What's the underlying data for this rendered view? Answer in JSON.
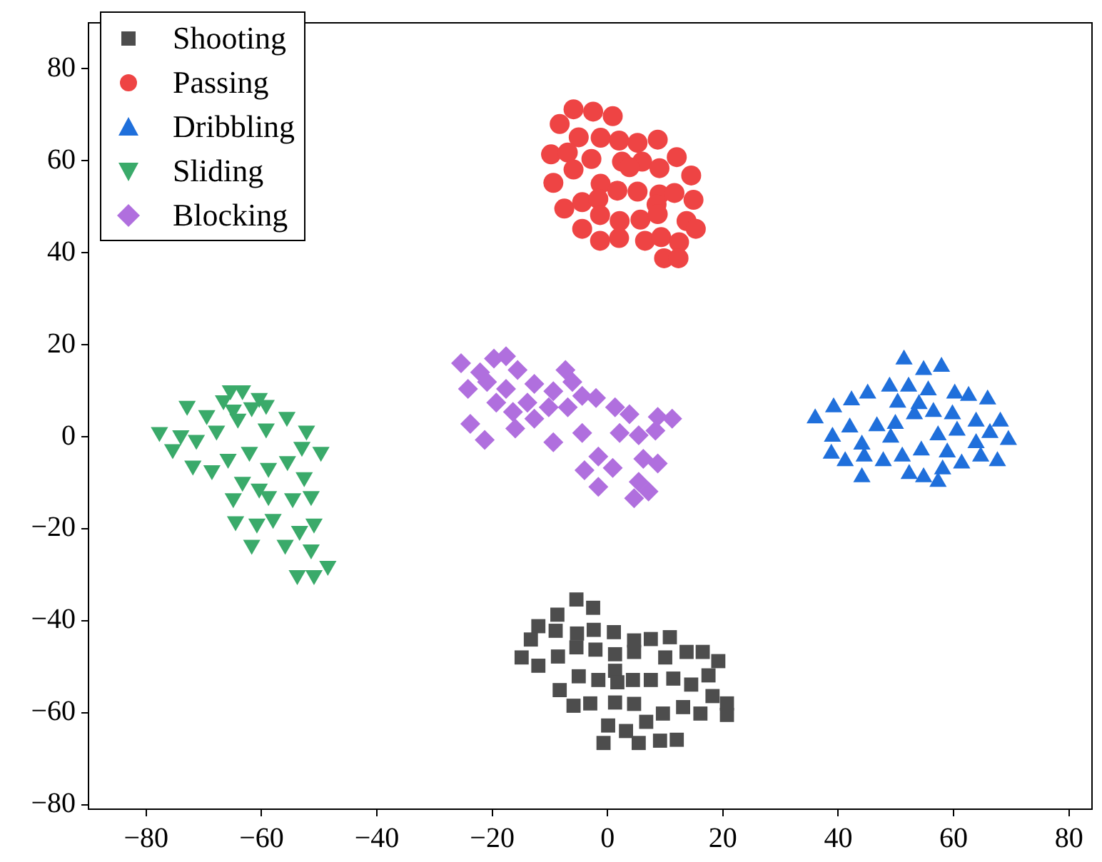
{
  "chart_data": {
    "type": "scatter",
    "xlim": [
      -90,
      84
    ],
    "ylim": [
      -81,
      90
    ],
    "xticks": [
      -80,
      -60,
      -40,
      -20,
      0,
      20,
      40,
      60,
      80
    ],
    "yticks": [
      -80,
      -60,
      -40,
      -20,
      0,
      20,
      40,
      60,
      80
    ],
    "grid": false,
    "legend": "top left",
    "series": [
      {
        "name": "Shooting",
        "color": "#4d4d4d",
        "marker": "square",
        "x": [
          -5.4,
          -2.5,
          -8.7,
          -12,
          -9,
          -5.3,
          -2.4,
          1.1,
          -13.3,
          -5.4,
          -2.1,
          1.3,
          4.6,
          7.5,
          10.8,
          -14.9,
          -12,
          -8.6,
          4.6,
          10,
          13.7,
          16.5,
          19.2,
          -5,
          -1.6,
          1.3,
          1.7,
          4.4,
          7.5,
          11.4,
          14.5,
          17.5,
          -8.3,
          -5.9,
          -3,
          1.3,
          4.6,
          9.6,
          13.1,
          16.1,
          18.2,
          20.7,
          20.7,
          0.1,
          3.2,
          6.7,
          -0.7,
          5.4,
          9.1,
          12
        ],
        "values": [
          -35.4,
          -37.2,
          -38.7,
          -41.2,
          -42.2,
          -42.8,
          -42,
          -42.5,
          -44.1,
          -45.8,
          -46.3,
          -47.3,
          -44.3,
          -44,
          -43.6,
          -48,
          -49.8,
          -47.8,
          -46.8,
          -48,
          -46.8,
          -46.8,
          -48.8,
          -52.1,
          -52.9,
          -50.9,
          -53.4,
          -52.9,
          -52.9,
          -52.6,
          -53.9,
          -51.9,
          -55.1,
          -58.5,
          -58,
          -57.8,
          -58.1,
          -60.2,
          -58.8,
          -60.2,
          -56.4,
          -58,
          -60.5,
          -62.8,
          -64,
          -62,
          -66.6,
          -66.6,
          -66.1,
          -65.9
        ]
      },
      {
        "name": "Passing",
        "color": "#ee4444",
        "marker": "circle",
        "x": [
          -5.9,
          -2.5,
          0.9,
          -8.3,
          -5,
          -1.2,
          2,
          5.2,
          8.7,
          -9.8,
          -6.9,
          -2.8,
          2.5,
          6,
          9,
          12,
          -5.9,
          3.8,
          14.5,
          -9.4,
          -1.2,
          1.7,
          5.2,
          9,
          11.6,
          14.9,
          -7.5,
          -4.4,
          -1.6,
          8.5,
          -1.3,
          2.1,
          5.7,
          8.7,
          13.7,
          15.3,
          -4.4,
          -1.3,
          2,
          6.5,
          9.3,
          12.4,
          9.8,
          12.3
        ],
        "values": [
          71.2,
          70.7,
          69.7,
          68,
          65.1,
          65,
          64.4,
          63.9,
          64.6,
          61.4,
          61.8,
          60.4,
          59.8,
          59.8,
          58.4,
          60.8,
          58.1,
          58.6,
          56.8,
          55.2,
          55,
          53.5,
          53.3,
          52.7,
          53,
          51.5,
          49.6,
          51,
          51.7,
          50.5,
          48.2,
          46.9,
          47.2,
          48.4,
          46.9,
          45.2,
          45.2,
          42.6,
          43.2,
          42.6,
          43.4,
          42.3,
          38.8,
          38.8
        ]
      },
      {
        "name": "Dribbling",
        "color": "#1f6fdb",
        "marker": "triangle",
        "x": [
          51.4,
          54.8,
          57.9,
          45.1,
          42.3,
          48.9,
          52.2,
          55.6,
          60.2,
          62.6,
          65.9,
          39.2,
          36,
          50.3,
          54,
          56.5,
          59.8,
          63.9,
          68.1,
          42,
          46.7,
          49.9,
          53.2,
          39,
          44.1,
          49.1,
          57.3,
          60.6,
          66.3,
          69.5,
          38.8,
          41.2,
          44.5,
          47.8,
          51.1,
          54.4,
          58.9,
          63.9,
          61.4,
          64.7,
          67.6,
          44.1,
          52.3,
          54.8,
          58.1,
          57.3
        ],
        "values": [
          16.8,
          14.5,
          15.2,
          9.4,
          7.9,
          10.9,
          10.9,
          10.1,
          9.4,
          8.9,
          8.1,
          6.4,
          4,
          7.4,
          7.1,
          5.4,
          4.9,
          3.3,
          3.3,
          2,
          2.3,
          2.8,
          4.9,
          0,
          -1.7,
          -0.2,
          0.3,
          1.3,
          0.8,
          -0.7,
          -3.7,
          -5.3,
          -4.3,
          -5.3,
          -4.3,
          -3,
          -3.4,
          -1.4,
          -5.8,
          -4.3,
          -5.3,
          -8.8,
          -8.1,
          -8.8,
          -7.1,
          -9.8
        ]
      },
      {
        "name": "Sliding",
        "color": "#3aaa6a",
        "marker": "triangle_down",
        "x": [
          -65.4,
          -63.3,
          -66.6,
          -60.4,
          -72.9,
          -69.5,
          -64.9,
          -61.7,
          -59.2,
          -55.6,
          -77.7,
          -74,
          -71.3,
          -67.8,
          -64.1,
          -59.2,
          -52.2,
          -75.4,
          -71.9,
          -68.6,
          -65.8,
          -62.1,
          -58.8,
          -55.5,
          -53,
          -49.7,
          -52.6,
          -63.3,
          -60.4,
          -64.9,
          -58.8,
          -54.6,
          -51.4,
          -64.5,
          -60.8,
          -58,
          -61.7,
          -55.9,
          -53.4,
          -50.9,
          -51.4,
          -48.5,
          -53.8,
          -50.9
        ],
        "values": [
          10.1,
          10.1,
          7.9,
          8.4,
          6.7,
          4.7,
          5.9,
          6.4,
          6.9,
          4.3,
          1,
          0.3,
          -0.7,
          1.3,
          3.9,
          1.8,
          1.3,
          -2.7,
          -6.3,
          -7.3,
          -4.8,
          -3.3,
          -6.8,
          -5.3,
          -2.2,
          -3.3,
          -8.8,
          -9.8,
          -11.3,
          -13.4,
          -12.9,
          -13.4,
          -12.9,
          -18.4,
          -18.9,
          -17.9,
          -23.5,
          -23.5,
          -20.5,
          -18.9,
          -24.5,
          -28.1,
          -30.1,
          -30.1
        ]
      },
      {
        "name": "Blocking",
        "color": "#b06fde",
        "marker": "diamond",
        "x": [
          -25.4,
          -19.7,
          -17.6,
          -22.1,
          -15.6,
          -24.2,
          -20.9,
          -17.6,
          -12.7,
          -7.3,
          -6.1,
          -9.4,
          -4.4,
          -2,
          -13.9,
          -19.3,
          -16.4,
          -10.2,
          -6.9,
          -12.7,
          -16,
          -23.8,
          -21.3,
          -9.4,
          -4.4,
          1.3,
          3.8,
          2.1,
          5.4,
          8.7,
          11.2,
          8.3,
          -1.6,
          -4,
          0.9,
          -1.6,
          6.2,
          8.7,
          5.4,
          7.1,
          4.6
        ],
        "values": [
          16,
          17,
          17.5,
          14,
          14.5,
          10.4,
          11.9,
          10.4,
          11.5,
          14.5,
          11.9,
          9.9,
          8.9,
          8.4,
          7.4,
          7.4,
          5.4,
          6.4,
          6.4,
          3.9,
          1.8,
          2.8,
          -0.7,
          -1.2,
          0.8,
          6.4,
          4.9,
          0.8,
          0.3,
          4.3,
          3.9,
          1.3,
          -4.3,
          -7.3,
          -6.8,
          -10.9,
          -4.8,
          -5.8,
          -9.8,
          -11.9,
          -13.4
        ]
      }
    ]
  }
}
